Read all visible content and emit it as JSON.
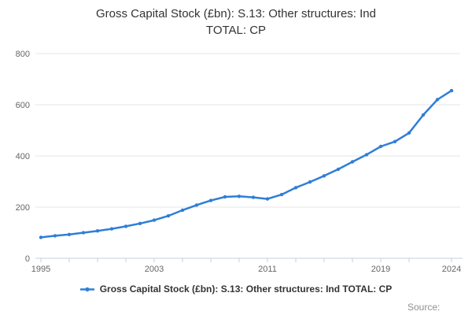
{
  "ui": {
    "title_line1": "Gross Capital Stock (£bn): S.13: Other structures: Ind",
    "title_line2": "TOTAL: CP",
    "legend_label": "Gross Capital Stock (£bn): S.13: Other structures: Ind TOTAL: CP",
    "source_label": "Source:",
    "colors": {
      "line": "#2f7ed8",
      "grid": "#e6e6e6",
      "axis": "#c0d0e0",
      "tick_label": "#666666",
      "title_text": "#333333",
      "source_text": "#909090"
    }
  },
  "chart_data": {
    "type": "line",
    "title": "Gross Capital Stock (£bn): S.13: Other structures: Ind TOTAL: CP",
    "xlabel": "",
    "ylabel": "",
    "ylim": [
      0,
      800
    ],
    "y_ticks": [
      0,
      200,
      400,
      600,
      800
    ],
    "x_range": [
      1995,
      2024
    ],
    "x_labeled_ticks": [
      1995,
      2003,
      2011,
      2019,
      2024
    ],
    "x_tick_years": [
      1995,
      1997,
      1999,
      2001,
      2003,
      2005,
      2007,
      2009,
      2011,
      2013,
      2015,
      2017,
      2019,
      2021,
      2024
    ],
    "grid": true,
    "legend_position": "bottom",
    "x": [
      1995,
      1996,
      1997,
      1998,
      1999,
      2000,
      2001,
      2002,
      2003,
      2004,
      2005,
      2006,
      2007,
      2008,
      2009,
      2010,
      2011,
      2012,
      2013,
      2014,
      2015,
      2016,
      2017,
      2018,
      2019,
      2020,
      2021,
      2022,
      2023,
      2024
    ],
    "series": [
      {
        "name": "Gross Capital Stock (£bn): S.13: Other structures: Ind TOTAL: CP",
        "values": [
          82,
          88,
          93,
          100,
          107,
          115,
          125,
          136,
          149,
          166,
          188,
          208,
          226,
          240,
          242,
          238,
          232,
          249,
          276,
          298,
          322,
          348,
          377,
          405,
          437,
          456,
          490,
          560,
          620,
          655
        ]
      }
    ]
  }
}
